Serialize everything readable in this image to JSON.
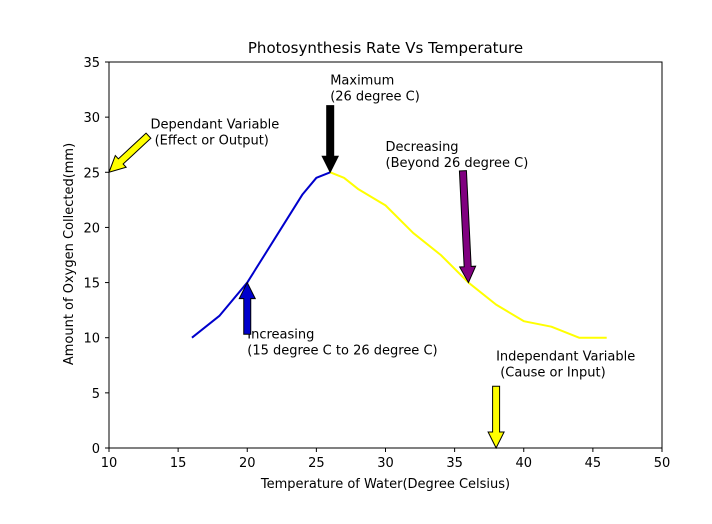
{
  "chart_data": {
    "type": "line",
    "title": "Photosynthesis Rate Vs Temperature",
    "xlabel": "Temperature of Water(Degree Celsius)",
    "ylabel": "Amount of Oxygen Collected(mm)",
    "xlim": [
      10,
      50
    ],
    "ylim": [
      0,
      35
    ],
    "xticks": [
      "10",
      "15",
      "20",
      "25",
      "30",
      "35",
      "40",
      "45",
      "50"
    ],
    "yticks": [
      "0",
      "5",
      "10",
      "15",
      "20",
      "25",
      "30",
      "35"
    ],
    "grid": false,
    "series": [
      {
        "color": "#0000cc",
        "x": [
          16,
          18,
          20,
          22,
          24,
          25,
          26
        ],
        "y": [
          10,
          12,
          15,
          19,
          23,
          24.5,
          25
        ]
      },
      {
        "color": "#ffff00",
        "x": [
          26,
          27,
          28,
          30,
          32,
          34,
          36,
          38,
          40,
          42,
          44,
          46
        ],
        "y": [
          25,
          24.5,
          23.5,
          22,
          19.5,
          17.5,
          15,
          13,
          11.5,
          11,
          10,
          10
        ]
      }
    ],
    "annotations": [
      {
        "lines": [
          "Dependant Variable",
          " (Effect or Output)"
        ],
        "text_x": 13,
        "text_y": 27.5,
        "target_x": 10,
        "target_y": 25,
        "arrow_color": "#ffff00"
      },
      {
        "lines": [
          "Maximum",
          "(26 degree C)"
        ],
        "text_x": 26,
        "text_y": 31.5,
        "target_x": 26,
        "target_y": 25,
        "arrow_color": "#000000"
      },
      {
        "lines": [
          "Decreasing",
          "(Beyond 26 degree C)"
        ],
        "text_x": 30,
        "text_y": 25.5,
        "target_x": 36,
        "target_y": 15,
        "arrow_color": "#800080"
      },
      {
        "lines": [
          "Increasing",
          "(15 degree C to 26 degree C)"
        ],
        "text_x": 20,
        "text_y": 8.5,
        "target_x": 20,
        "target_y": 15,
        "arrow_color": "#0000cc"
      },
      {
        "lines": [
          "Independant Variable",
          " (Cause or Input)"
        ],
        "text_x": 38,
        "text_y": 6.5,
        "target_x": 38,
        "target_y": 0,
        "arrow_color": "#ffff00"
      }
    ]
  }
}
